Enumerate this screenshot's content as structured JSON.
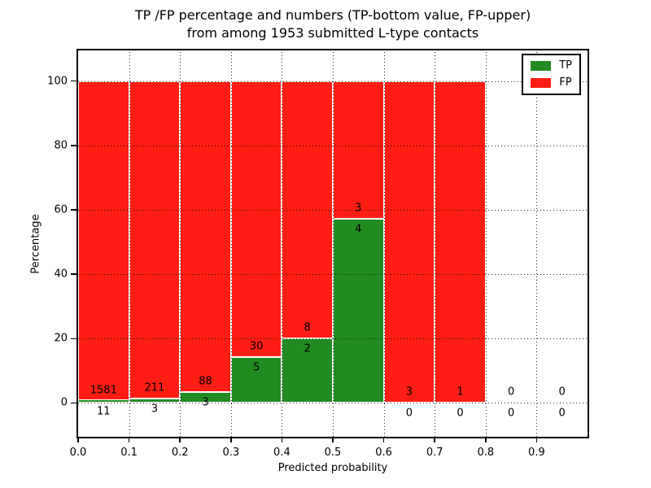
{
  "title": {
    "line1": "TP /FP percentage and numbers (TP-bottom value, FP-upper)",
    "line2": "from among 1953 submitted L-type contacts"
  },
  "axes": {
    "xlabel": "Predicted probability",
    "ylabel": "Percentage"
  },
  "legend": {
    "tp_label": "TP",
    "fp_label": "FP"
  },
  "colors": {
    "tp_green": "#228b22",
    "fp_red": "#ff1d14",
    "background": "#ffffff",
    "grid": "#000000"
  },
  "chart_data": {
    "type": "bar",
    "stacked": true,
    "title": "TP /FP percentage and numbers (TP-bottom value, FP-upper) from among 1953 submitted L-type contacts",
    "xlabel": "Predicted probability",
    "ylabel": "Percentage",
    "xlim": [
      0.0,
      1.0
    ],
    "ylim": [
      -10.5,
      109.5
    ],
    "yticks": [
      0,
      20,
      40,
      60,
      80,
      100
    ],
    "xticks": [
      0.0,
      0.1,
      0.2,
      0.3,
      0.4,
      0.5,
      0.6,
      0.7,
      0.8,
      0.9
    ],
    "xtick_labels": [
      "0.0",
      "0.1",
      "0.2",
      "0.3",
      "0.4",
      "0.5",
      "0.6",
      "0.7",
      "0.8",
      "0.9"
    ],
    "grid": "dotted",
    "legend_position": "upper right",
    "total_contacts": 1953,
    "series": [
      {
        "name": "TP",
        "color": "#228b22",
        "counts": [
          11,
          3,
          3,
          5,
          2,
          4,
          0,
          0,
          0,
          0
        ]
      },
      {
        "name": "FP",
        "color": "#ff1d14",
        "counts": [
          1581,
          211,
          88,
          30,
          8,
          3,
          3,
          1,
          0,
          0
        ]
      }
    ],
    "bins": [
      {
        "x0": 0.0,
        "x1": 0.1,
        "tp": 11,
        "fp": 1581,
        "tp_pct": 0.69,
        "fp_pct": 99.31
      },
      {
        "x0": 0.1,
        "x1": 0.2,
        "tp": 3,
        "fp": 211,
        "tp_pct": 1.4,
        "fp_pct": 98.6
      },
      {
        "x0": 0.2,
        "x1": 0.3,
        "tp": 3,
        "fp": 88,
        "tp_pct": 3.3,
        "fp_pct": 96.7
      },
      {
        "x0": 0.3,
        "x1": 0.4,
        "tp": 5,
        "fp": 30,
        "tp_pct": 14.29,
        "fp_pct": 85.71
      },
      {
        "x0": 0.4,
        "x1": 0.5,
        "tp": 2,
        "fp": 8,
        "tp_pct": 20.0,
        "fp_pct": 80.0
      },
      {
        "x0": 0.5,
        "x1": 0.6,
        "tp": 4,
        "fp": 3,
        "tp_pct": 57.14,
        "fp_pct": 42.86
      },
      {
        "x0": 0.6,
        "x1": 0.7,
        "tp": 0,
        "fp": 3,
        "tp_pct": 0.0,
        "fp_pct": 100.0
      },
      {
        "x0": 0.7,
        "x1": 0.8,
        "tp": 0,
        "fp": 1,
        "tp_pct": 0.0,
        "fp_pct": 100.0
      },
      {
        "x0": 0.8,
        "x1": 0.9,
        "tp": 0,
        "fp": 0,
        "tp_pct": null,
        "fp_pct": null
      },
      {
        "x0": 0.9,
        "x1": 1.0,
        "tp": 0,
        "fp": 0,
        "tp_pct": null,
        "fp_pct": null
      }
    ]
  }
}
